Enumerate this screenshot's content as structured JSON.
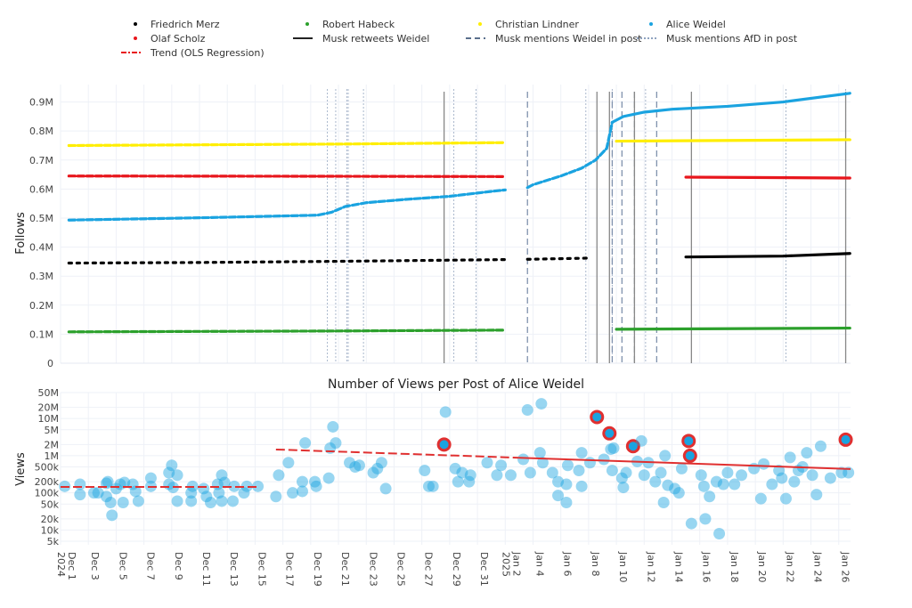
{
  "legend": {
    "items": [
      {
        "label": "Friedrich Merz",
        "kind": "dot",
        "color": "#000000"
      },
      {
        "label": "Robert Habeck",
        "kind": "dot",
        "color": "#2ca02c"
      },
      {
        "label": "Christian Lindner",
        "kind": "dot",
        "color": "#ffee00"
      },
      {
        "label": "Alice Weidel",
        "kind": "dot",
        "color": "#1aa3e0"
      },
      {
        "label": "Olaf Scholz",
        "kind": "dot",
        "color": "#e8161c"
      },
      {
        "label": "Musk retweets Weidel",
        "kind": "solid",
        "color": "#222222"
      },
      {
        "label": "Musk mentions Weidel in post",
        "kind": "dashed",
        "color": "#5a6f8c"
      },
      {
        "label": "Musk mentions AfD in post",
        "kind": "dotted",
        "color": "#8fa3c0"
      },
      {
        "label": "Trend (OLS Regression)",
        "kind": "dashdot",
        "color": "#e8161c"
      }
    ]
  },
  "x_axis": {
    "unit": "days since 2024-12-01",
    "ticks": [
      {
        "day": 0,
        "label": "Dec 1",
        "sub": "2024"
      },
      {
        "day": 2,
        "label": "Dec 3"
      },
      {
        "day": 4,
        "label": "Dec 5"
      },
      {
        "day": 6,
        "label": "Dec 7"
      },
      {
        "day": 8,
        "label": "Dec 9"
      },
      {
        "day": 10,
        "label": "Dec 11"
      },
      {
        "day": 12,
        "label": "Dec 13"
      },
      {
        "day": 14,
        "label": "Dec 15"
      },
      {
        "day": 16,
        "label": "Dec 17"
      },
      {
        "day": 18,
        "label": "Dec 19"
      },
      {
        "day": 20,
        "label": "Dec 21"
      },
      {
        "day": 22,
        "label": "Dec 23"
      },
      {
        "day": 24,
        "label": "Dec 25"
      },
      {
        "day": 26,
        "label": "Dec 27"
      },
      {
        "day": 28,
        "label": "Dec 29"
      },
      {
        "day": 30,
        "label": "Dec 31"
      },
      {
        "day": 32,
        "label": "Jan 2",
        "sub": "2025"
      },
      {
        "day": 34,
        "label": "Jan 4"
      },
      {
        "day": 36,
        "label": "Jan 6"
      },
      {
        "day": 38,
        "label": "Jan 8"
      },
      {
        "day": 40,
        "label": "Jan 10"
      },
      {
        "day": 42,
        "label": "Jan 12"
      },
      {
        "day": 44,
        "label": "Jan 14"
      },
      {
        "day": 46,
        "label": "Jan 16"
      },
      {
        "day": 48,
        "label": "Jan 18"
      },
      {
        "day": 50,
        "label": "Jan 20"
      },
      {
        "day": 52,
        "label": "Jan 22"
      },
      {
        "day": 54,
        "label": "Jan 24"
      },
      {
        "day": 56,
        "label": "Jan 26"
      }
    ],
    "range": [
      0,
      56.85
    ]
  },
  "chart_data": [
    {
      "type": "line",
      "title": "",
      "ylabel": "Follows",
      "ylim": [
        0,
        960000
      ],
      "yticks": [
        {
          "v": 0,
          "label": "0"
        },
        {
          "v": 100000,
          "label": "0.1M"
        },
        {
          "v": 200000,
          "label": "0.2M"
        },
        {
          "v": 300000,
          "label": "0.3M"
        },
        {
          "v": 400000,
          "label": "0.4M"
        },
        {
          "v": 500000,
          "label": "0.5M"
        },
        {
          "v": 600000,
          "label": "0.6M"
        },
        {
          "v": 700000,
          "label": "0.7M"
        },
        {
          "v": 800000,
          "label": "0.8M"
        },
        {
          "v": 900000,
          "label": "0.9M"
        }
      ],
      "series": [
        {
          "name": "Friedrich Merz",
          "color": "#000000",
          "points": [
            [
              0.6,
              345000
            ],
            [
              10,
              347000
            ],
            [
              20,
              351000
            ],
            [
              28,
              355000
            ],
            [
              32,
              357000
            ],
            [
              33.6,
              358000
            ],
            [
              38,
              362000
            ],
            [
              45,
              366000
            ],
            [
              52,
              369000
            ],
            [
              56.8,
              378000
            ]
          ]
        },
        {
          "name": "Robert Habeck",
          "color": "#2ca02c",
          "points": [
            [
              0.6,
              108000
            ],
            [
              20,
              111000
            ],
            [
              32,
              114000
            ],
            [
              33.6,
              114500
            ],
            [
              40,
              117000
            ],
            [
              56.8,
              121000
            ]
          ]
        },
        {
          "name": "Christian Lindner",
          "color": "#ffee00",
          "points": [
            [
              0.6,
              750000
            ],
            [
              20,
              755000
            ],
            [
              32,
              760000
            ],
            [
              33.6,
              762000
            ],
            [
              40,
              765000
            ],
            [
              56.8,
              770000
            ]
          ]
        },
        {
          "name": "Olaf Scholz",
          "color": "#e8161c",
          "points": [
            [
              0.6,
              645000
            ],
            [
              20,
              644000
            ],
            [
              32,
              643000
            ],
            [
              33.6,
              643000
            ],
            [
              45,
              641000
            ],
            [
              56.8,
              638000
            ]
          ]
        },
        {
          "name": "Alice Weidel",
          "color": "#1aa3e0",
          "points": [
            [
              0.6,
              493000
            ],
            [
              10,
              501000
            ],
            [
              18.5,
              510000
            ],
            [
              19.5,
              520000
            ],
            [
              20.5,
              540000
            ],
            [
              22,
              553000
            ],
            [
              25,
              565000
            ],
            [
              28,
              575000
            ],
            [
              31,
              592000
            ],
            [
              32,
              597000
            ],
            [
              33.6,
              605000
            ],
            [
              34,
              615000
            ],
            [
              36,
              645000
            ],
            [
              37.5,
              672000
            ],
            [
              38.5,
              700000
            ],
            [
              39.3,
              740000
            ],
            [
              39.7,
              830000
            ],
            [
              40.5,
              850000
            ],
            [
              42,
              865000
            ],
            [
              44,
              875000
            ],
            [
              48,
              885000
            ],
            [
              52,
              900000
            ],
            [
              56.8,
              930000
            ]
          ]
        }
      ],
      "event_lines": {
        "retweets": [
          27.6,
          38.6,
          39.5,
          41.3,
          45.4,
          56.5
        ],
        "weidel_mentions": [
          33.6,
          39.7,
          40.4,
          41.3,
          42.9
        ],
        "afd_mentions": [
          19.2,
          19.8,
          20.6,
          20.7,
          21.8,
          28.3,
          29.9,
          37.8,
          39.7,
          42.1,
          52.2,
          56.5
        ]
      }
    },
    {
      "type": "scatter",
      "title": "Number of Views per Post of Alice Weidel",
      "ylabel": "Views",
      "yscale": "log",
      "ylim": [
        4200,
        60000000
      ],
      "yticks": [
        {
          "v": 50000000,
          "label": "50M"
        },
        {
          "v": 20000000,
          "label": "20M"
        },
        {
          "v": 10000000,
          "label": "10M"
        },
        {
          "v": 5000000,
          "label": "5M"
        },
        {
          "v": 2000000,
          "label": "2M"
        },
        {
          "v": 1000000,
          "label": "1M"
        },
        {
          "v": 500000,
          "label": "500k"
        },
        {
          "v": 200000,
          "label": "200k"
        },
        {
          "v": 100000,
          "label": "100k"
        },
        {
          "v": 50000,
          "label": "50k"
        },
        {
          "v": 20000,
          "label": "20k"
        },
        {
          "v": 10000,
          "label": "10k"
        },
        {
          "v": 5000,
          "label": "5k"
        }
      ],
      "points": [
        [
          0.3,
          150000,
          0
        ],
        [
          1.4,
          170000,
          0
        ],
        [
          1.4,
          90000,
          0
        ],
        [
          2.4,
          100000,
          0
        ],
        [
          2.7,
          100000,
          0
        ],
        [
          3.3,
          180000,
          0
        ],
        [
          3.3,
          80000,
          0
        ],
        [
          3.4,
          200000,
          0
        ],
        [
          3.7,
          25000,
          0
        ],
        [
          3.6,
          55000,
          0
        ],
        [
          4.0,
          130000,
          0
        ],
        [
          4.3,
          170000,
          0
        ],
        [
          4.6,
          190000,
          0
        ],
        [
          4.5,
          55000,
          0
        ],
        [
          5.2,
          170000,
          0
        ],
        [
          5.4,
          110000,
          0
        ],
        [
          5.6,
          60000,
          0
        ],
        [
          6.5,
          250000,
          0
        ],
        [
          6.5,
          150000,
          0
        ],
        [
          7.8,
          170000,
          0
        ],
        [
          7.8,
          350000,
          0
        ],
        [
          8.0,
          550000,
          0
        ],
        [
          8.1,
          140000,
          0
        ],
        [
          8.4,
          300000,
          0
        ],
        [
          8.4,
          60000,
          0
        ],
        [
          9.4,
          100000,
          0
        ],
        [
          9.5,
          150000,
          0
        ],
        [
          9.4,
          60000,
          0
        ],
        [
          10.3,
          130000,
          0
        ],
        [
          10.5,
          80000,
          0
        ],
        [
          10.8,
          55000,
          0
        ],
        [
          11.3,
          170000,
          0
        ],
        [
          11.4,
          100000,
          0
        ],
        [
          11.6,
          300000,
          0
        ],
        [
          11.6,
          60000,
          0
        ],
        [
          11.8,
          190000,
          0
        ],
        [
          12.5,
          150000,
          0
        ],
        [
          12.4,
          60000,
          0
        ],
        [
          13.2,
          100000,
          0
        ],
        [
          13.4,
          150000,
          0
        ],
        [
          14.2,
          150000,
          0
        ],
        [
          15.5,
          80000,
          0
        ],
        [
          15.7,
          300000,
          0
        ],
        [
          16.4,
          650000,
          0
        ],
        [
          16.7,
          100000,
          0
        ],
        [
          17.4,
          200000,
          0
        ],
        [
          17.4,
          110000,
          0
        ],
        [
          17.6,
          2200000,
          0
        ],
        [
          18.3,
          200000,
          0
        ],
        [
          18.4,
          150000,
          0
        ],
        [
          19.3,
          250000,
          0
        ],
        [
          19.4,
          1600000,
          0
        ],
        [
          19.6,
          6000000,
          0
        ],
        [
          19.8,
          2200000,
          0
        ],
        [
          20.8,
          650000,
          0
        ],
        [
          21.2,
          500000,
          0
        ],
        [
          21.5,
          550000,
          0
        ],
        [
          22.5,
          350000,
          0
        ],
        [
          22.8,
          450000,
          0
        ],
        [
          23.1,
          650000,
          0
        ],
        [
          23.4,
          130000,
          0
        ],
        [
          26.2,
          400000,
          0
        ],
        [
          26.5,
          150000,
          0
        ],
        [
          26.8,
          150000,
          0
        ],
        [
          27.6,
          2000000,
          1
        ],
        [
          27.7,
          15000000,
          0
        ],
        [
          28.4,
          450000,
          0
        ],
        [
          28.6,
          200000,
          0
        ],
        [
          28.9,
          350000,
          0
        ],
        [
          29.4,
          200000,
          0
        ],
        [
          29.5,
          300000,
          0
        ],
        [
          30.7,
          650000,
          0
        ],
        [
          31.4,
          300000,
          0
        ],
        [
          31.7,
          550000,
          0
        ],
        [
          32.4,
          300000,
          0
        ],
        [
          33.3,
          800000,
          0
        ],
        [
          33.6,
          17000000,
          0
        ],
        [
          33.8,
          350000,
          0
        ],
        [
          34.6,
          25000000,
          0
        ],
        [
          34.5,
          1200000,
          0
        ],
        [
          34.7,
          650000,
          0
        ],
        [
          35.4,
          350000,
          0
        ],
        [
          35.8,
          200000,
          0
        ],
        [
          35.8,
          85000,
          0
        ],
        [
          36.4,
          170000,
          0
        ],
        [
          36.4,
          55000,
          0
        ],
        [
          36.5,
          550000,
          0
        ],
        [
          37.3,
          400000,
          0
        ],
        [
          37.5,
          1200000,
          0
        ],
        [
          37.5,
          150000,
          0
        ],
        [
          38.1,
          650000,
          0
        ],
        [
          38.6,
          11000000,
          1
        ],
        [
          39.1,
          800000,
          0
        ],
        [
          39.5,
          4000000,
          1
        ],
        [
          39.6,
          1500000,
          0
        ],
        [
          39.8,
          1600000,
          0
        ],
        [
          39.7,
          400000,
          0
        ],
        [
          40.4,
          250000,
          0
        ],
        [
          40.5,
          140000,
          0
        ],
        [
          40.7,
          350000,
          0
        ],
        [
          41.2,
          1800000,
          1
        ],
        [
          41.8,
          2500000,
          0
        ],
        [
          41.5,
          700000,
          0
        ],
        [
          42.0,
          300000,
          0
        ],
        [
          42.3,
          650000,
          0
        ],
        [
          42.8,
          200000,
          0
        ],
        [
          43.2,
          350000,
          0
        ],
        [
          43.4,
          55000,
          0
        ],
        [
          43.5,
          1000000,
          0
        ],
        [
          43.7,
          160000,
          0
        ],
        [
          44.2,
          130000,
          0
        ],
        [
          44.5,
          100000,
          0
        ],
        [
          44.7,
          450000,
          0
        ],
        [
          45.2,
          2500000,
          1
        ],
        [
          45.3,
          1000000,
          1
        ],
        [
          45.4,
          15000,
          0
        ],
        [
          46.1,
          300000,
          0
        ],
        [
          46.3,
          150000,
          0
        ],
        [
          46.4,
          20000,
          0
        ],
        [
          46.7,
          80000,
          0
        ],
        [
          47.2,
          200000,
          0
        ],
        [
          47.4,
          8000,
          0
        ],
        [
          47.7,
          170000,
          0
        ],
        [
          48.0,
          350000,
          0
        ],
        [
          48.5,
          170000,
          0
        ],
        [
          49.0,
          300000,
          0
        ],
        [
          49.9,
          450000,
          0
        ],
        [
          50.4,
          70000,
          0
        ],
        [
          50.6,
          600000,
          0
        ],
        [
          51.2,
          170000,
          0
        ],
        [
          51.7,
          400000,
          0
        ],
        [
          51.9,
          250000,
          0
        ],
        [
          52.2,
          70000,
          0
        ],
        [
          52.5,
          900000,
          0
        ],
        [
          52.8,
          200000,
          0
        ],
        [
          53.1,
          400000,
          0
        ],
        [
          53.4,
          500000,
          0
        ],
        [
          53.7,
          1200000,
          0
        ],
        [
          54.1,
          300000,
          0
        ],
        [
          54.4,
          90000,
          0
        ],
        [
          54.7,
          1800000,
          0
        ],
        [
          55.4,
          250000,
          0
        ],
        [
          56.2,
          350000,
          0
        ],
        [
          56.5,
          2700000,
          1
        ],
        [
          56.7,
          350000,
          0
        ]
      ],
      "trend": [
        {
          "from": [
            0,
            145000
          ],
          "to": [
            14.3,
            145000
          ]
        },
        {
          "from": [
            15.5,
            1470000
          ],
          "to": [
            56.85,
            440000
          ]
        }
      ],
      "highlight_color": "#e03030",
      "point_color": "#1aa3e0"
    }
  ]
}
